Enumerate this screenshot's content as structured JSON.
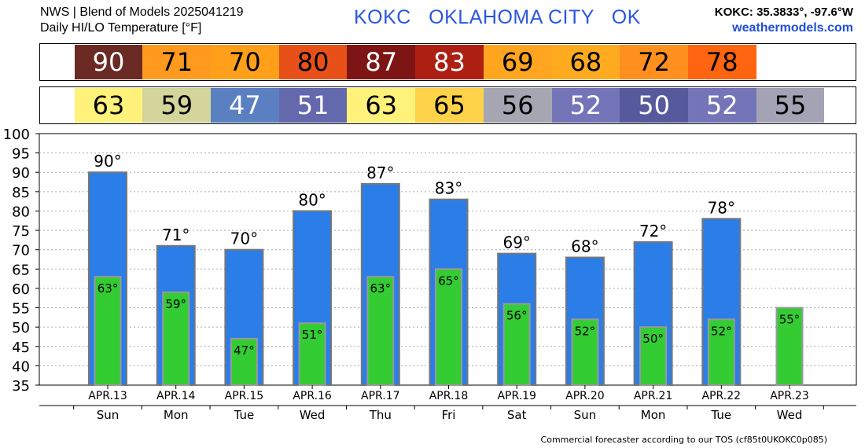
{
  "header": {
    "line1": "NWS | Blend of Models 2025041219",
    "line2": "Daily HI/LO Temperature [°F]",
    "station": "KOKC   OKLAHOMA CITY   OK",
    "coords": "KOKC: 35.3833°, -97.6°W",
    "site": "weathermodels.com"
  },
  "colors": {
    "hi_bar": "#2b7de8",
    "lo_bar": "#33cc33",
    "bar_outline": "#777777",
    "station_text": "#2a56e0"
  },
  "hi_strip": [
    {
      "value": "90",
      "bg": "#6b2a23",
      "fg": "#ffffff"
    },
    {
      "value": "71",
      "bg": "#ff9a1f",
      "fg": "#000000"
    },
    {
      "value": "70",
      "bg": "#ff9f1a",
      "fg": "#000000"
    },
    {
      "value": "80",
      "bg": "#e8501a",
      "fg": "#000000"
    },
    {
      "value": "87",
      "bg": "#7d1515",
      "fg": "#ffffff"
    },
    {
      "value": "83",
      "bg": "#ad1f12",
      "fg": "#ffffff"
    },
    {
      "value": "69",
      "bg": "#ffa51f",
      "fg": "#000000"
    },
    {
      "value": "68",
      "bg": "#ffab20",
      "fg": "#000000"
    },
    {
      "value": "72",
      "bg": "#ff8f1f",
      "fg": "#000000"
    },
    {
      "value": "78",
      "bg": "#ff6410",
      "fg": "#000000"
    }
  ],
  "lo_strip": [
    {
      "value": "63",
      "bg": "#fff27a",
      "fg": "#000000"
    },
    {
      "value": "59",
      "bg": "#d3d59a",
      "fg": "#000000"
    },
    {
      "value": "47",
      "bg": "#5b80c2",
      "fg": "#ffffff"
    },
    {
      "value": "51",
      "bg": "#6468ad",
      "fg": "#ffffff"
    },
    {
      "value": "63",
      "bg": "#fff27a",
      "fg": "#000000"
    },
    {
      "value": "65",
      "bg": "#ffd349",
      "fg": "#000000"
    },
    {
      "value": "56",
      "bg": "#a6a6b3",
      "fg": "#000000"
    },
    {
      "value": "52",
      "bg": "#7475b8",
      "fg": "#ffffff"
    },
    {
      "value": "50",
      "bg": "#565a9c",
      "fg": "#ffffff"
    },
    {
      "value": "52",
      "bg": "#7475b8",
      "fg": "#ffffff"
    },
    {
      "value": "55",
      "bg": "#a3a3b5",
      "fg": "#000000"
    }
  ],
  "chart_data": {
    "type": "bar",
    "categories": [
      "APR.13",
      "APR.14",
      "APR.15",
      "APR.16",
      "APR.17",
      "APR.18",
      "APR.19",
      "APR.20",
      "APR.21",
      "APR.22",
      "APR.23"
    ],
    "weekdays": [
      "Sun",
      "Mon",
      "Tue",
      "Wed",
      "Thu",
      "Fri",
      "Sat",
      "Sun",
      "Mon",
      "Tue",
      "Wed"
    ],
    "series": [
      {
        "values": [
          90,
          71,
          70,
          80,
          87,
          83,
          69,
          68,
          72,
          78,
          null
        ]
      },
      {
        "values": [
          63,
          59,
          47,
          51,
          63,
          65,
          56,
          52,
          50,
          52,
          55
        ]
      }
    ],
    "ylim": [
      35,
      100
    ],
    "yticks": [
      35,
      40,
      45,
      50,
      55,
      60,
      65,
      70,
      75,
      80,
      85,
      90,
      95,
      100
    ],
    "grid": true,
    "degree_suffix": "°"
  },
  "footer": "Commercial forecaster according to our TOS (cf85t0UKOKC0p085)"
}
